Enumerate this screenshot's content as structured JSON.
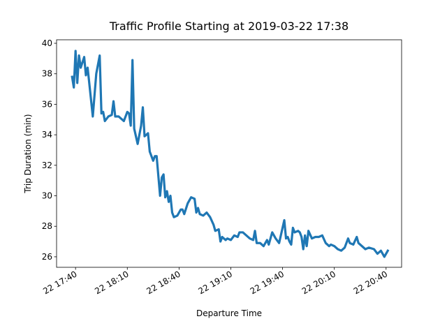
{
  "chart_data": {
    "type": "line",
    "title": "Traffic Profile Starting at 2019-03-22 17:38",
    "x_label": "Departure Time",
    "y_label": "Trip Duration (min)",
    "x": [
      "22 17:38",
      "22 17:39",
      "22 17:40",
      "22 17:41",
      "22 17:42",
      "22 17:43",
      "22 17:45",
      "22 17:46",
      "22 17:47",
      "22 17:50",
      "22 17:52",
      "22 17:54",
      "22 17:55",
      "22 17:56",
      "22 17:57",
      "22 17:59",
      "22 18:01",
      "22 18:02",
      "22 18:03",
      "22 18:05",
      "22 18:08",
      "22 18:10",
      "22 18:11",
      "22 18:12",
      "22 18:13",
      "22 18:14",
      "22 18:16",
      "22 18:18",
      "22 18:19",
      "22 18:20",
      "22 18:22",
      "22 18:23",
      "22 18:25",
      "22 18:26",
      "22 18:27",
      "22 18:29",
      "22 18:30",
      "22 18:31",
      "22 18:32",
      "22 18:33",
      "22 18:34",
      "22 18:35",
      "22 18:36",
      "22 18:37",
      "22 18:39",
      "22 18:41",
      "22 18:42",
      "22 18:43",
      "22 18:45",
      "22 18:47",
      "22 18:49",
      "22 18:50",
      "22 18:51",
      "22 18:52",
      "22 18:54",
      "22 18:56",
      "22 18:58",
      "22 19:00",
      "22 19:01",
      "22 19:03",
      "22 19:04",
      "22 19:05",
      "22 19:07",
      "22 19:08",
      "22 19:10",
      "22 19:12",
      "22 19:14",
      "22 19:15",
      "22 19:17",
      "22 19:19",
      "22 19:21",
      "22 19:23",
      "22 19:24",
      "22 19:25",
      "22 19:27",
      "22 19:29",
      "22 19:31",
      "22 19:32",
      "22 19:34",
      "22 19:36",
      "22 19:38",
      "22 19:41",
      "22 19:42",
      "22 19:43",
      "22 19:44",
      "22 19:45",
      "22 19:46",
      "22 19:47",
      "22 19:49",
      "22 19:50",
      "22 19:51",
      "22 19:52",
      "22 19:53",
      "22 19:54",
      "22 19:55",
      "22 19:57",
      "22 19:59",
      "22 20:01",
      "22 20:03",
      "22 20:05",
      "22 20:07",
      "22 20:08",
      "22 20:10",
      "22 20:12",
      "22 20:14",
      "22 20:16",
      "22 20:18",
      "22 20:19",
      "22 20:21",
      "22 20:23",
      "22 20:24",
      "22 20:26",
      "22 20:28",
      "22 20:30",
      "22 20:33",
      "22 20:35",
      "22 20:37",
      "22 20:39",
      "22 20:41"
    ],
    "series": [
      {
        "color": "#1f77b4",
        "values": [
          37.8,
          37.1,
          39.5,
          37.4,
          39.2,
          38.4,
          39.1,
          37.9,
          38.4,
          35.2,
          38.0,
          39.2,
          35.4,
          35.5,
          34.9,
          35.2,
          35.3,
          36.2,
          35.2,
          35.2,
          34.9,
          35.5,
          35.4,
          34.6,
          38.9,
          34.4,
          33.4,
          34.6,
          35.8,
          33.9,
          34.1,
          32.9,
          32.3,
          32.6,
          32.6,
          30.0,
          31.2,
          31.4,
          29.9,
          30.3,
          29.6,
          30.0,
          28.9,
          28.6,
          28.7,
          29.1,
          29.1,
          28.8,
          29.5,
          29.9,
          29.8,
          28.9,
          29.2,
          28.8,
          28.7,
          28.9,
          28.6,
          28.1,
          27.7,
          27.8,
          27.0,
          27.3,
          27.1,
          27.2,
          27.1,
          27.4,
          27.3,
          27.6,
          27.6,
          27.4,
          27.2,
          27.1,
          27.7,
          26.9,
          26.9,
          26.7,
          27.1,
          26.8,
          27.6,
          27.2,
          26.9,
          28.4,
          27.2,
          27.3,
          27.0,
          26.8,
          27.9,
          27.6,
          27.7,
          27.6,
          27.3,
          26.5,
          27.4,
          26.7,
          27.7,
          27.2,
          27.3,
          27.3,
          27.4,
          26.9,
          26.7,
          26.8,
          26.7,
          26.5,
          26.4,
          26.6,
          27.2,
          26.9,
          26.8,
          27.3,
          26.9,
          26.7,
          26.5,
          26.6,
          26.5,
          26.2,
          26.4,
          26.0,
          26.4
        ]
      }
    ],
    "xlim": [
      "22 17:29",
      "22 20:49"
    ],
    "xticks": [
      "22 17:40",
      "22 18:10",
      "22 18:40",
      "22 19:10",
      "22 19:40",
      "22 20:10",
      "22 20:40"
    ],
    "ylim": [
      25.31,
      40.23
    ],
    "yticks": [
      26,
      28,
      30,
      32,
      34,
      36,
      38,
      40
    ]
  }
}
